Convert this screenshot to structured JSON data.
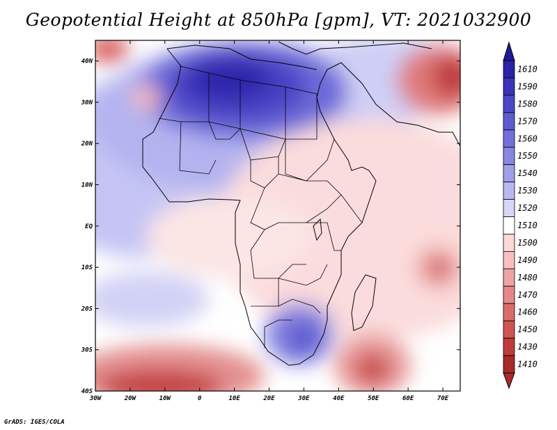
{
  "title": "Geopotential Height at 850hPa [gpm], VT: 2021032900",
  "footer": "GrADS: IGES/COLA",
  "map": {
    "lon_range": [
      -30,
      75
    ],
    "lat_range": [
      -40,
      45
    ],
    "lon_ticks": [
      {
        "value": -30,
        "label": "30W"
      },
      {
        "value": -20,
        "label": "20W"
      },
      {
        "value": -10,
        "label": "10W"
      },
      {
        "value": 0,
        "label": "0"
      },
      {
        "value": 10,
        "label": "10E"
      },
      {
        "value": 20,
        "label": "20E"
      },
      {
        "value": 30,
        "label": "30E"
      },
      {
        "value": 40,
        "label": "40E"
      },
      {
        "value": 50,
        "label": "50E"
      },
      {
        "value": 60,
        "label": "60E"
      },
      {
        "value": 70,
        "label": "70E"
      }
    ],
    "lat_ticks": [
      {
        "value": 40,
        "label": "40N"
      },
      {
        "value": 30,
        "label": "30N"
      },
      {
        "value": 20,
        "label": "20N"
      },
      {
        "value": 10,
        "label": "10N"
      },
      {
        "value": 0,
        "label": "EQ"
      },
      {
        "value": -10,
        "label": "10S"
      },
      {
        "value": -20,
        "label": "20S"
      },
      {
        "value": -30,
        "label": "30S"
      },
      {
        "value": -40,
        "label": "40S"
      }
    ]
  },
  "colorbar": {
    "levels": [
      {
        "label": "1610",
        "color": "#2a22a8"
      },
      {
        "label": "1590",
        "color": "#3b34b8"
      },
      {
        "label": "1580",
        "color": "#4c47c6"
      },
      {
        "label": "1570",
        "color": "#5e5bd0"
      },
      {
        "label": "1560",
        "color": "#7370da"
      },
      {
        "label": "1550",
        "color": "#8886e2"
      },
      {
        "label": "1540",
        "color": "#a09fea"
      },
      {
        "label": "1530",
        "color": "#b9b8f2"
      },
      {
        "label": "1520",
        "color": "#d6d6f8"
      },
      {
        "label": "1510",
        "color": "#ffffff"
      },
      {
        "label": "1500",
        "color": "#fbd9d9"
      },
      {
        "label": "1490",
        "color": "#f6c0c0"
      },
      {
        "label": "1480",
        "color": "#eea4a4"
      },
      {
        "label": "1470",
        "color": "#e68888"
      },
      {
        "label": "1460",
        "color": "#dc6c6c"
      },
      {
        "label": "1450",
        "color": "#d05454"
      },
      {
        "label": "1430",
        "color": "#c03c3c"
      },
      {
        "label": "1410",
        "color": "#a82a2a"
      }
    ],
    "top_arrow_color": "#1f1a96",
    "bottom_arrow_color": "#a82a2a"
  }
}
